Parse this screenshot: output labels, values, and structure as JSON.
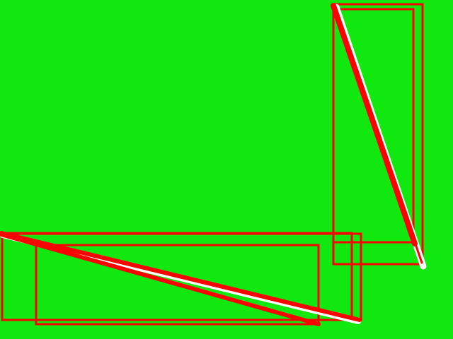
{
  "scene": {
    "background_color": "#10e810",
    "stroke_color": "#ff0000",
    "highlight_color": "#ffffff",
    "elements": [
      {
        "name": "vertical-box-outer",
        "shape": "rectangle"
      },
      {
        "name": "vertical-box-inner",
        "shape": "rectangle"
      },
      {
        "name": "vertical-box-lower",
        "shape": "rectangle"
      },
      {
        "name": "vertical-diagonal-highlight",
        "shape": "line"
      },
      {
        "name": "vertical-diagonal-stroke",
        "shape": "line"
      },
      {
        "name": "horizontal-box-outer",
        "shape": "rectangle"
      },
      {
        "name": "horizontal-box-mid",
        "shape": "rectangle"
      },
      {
        "name": "horizontal-box-inner",
        "shape": "rectangle"
      },
      {
        "name": "horizontal-diagonal-highlight",
        "shape": "line"
      },
      {
        "name": "horizontal-diagonal-stroke-upper",
        "shape": "line"
      },
      {
        "name": "horizontal-diagonal-stroke-lower",
        "shape": "line"
      }
    ]
  }
}
